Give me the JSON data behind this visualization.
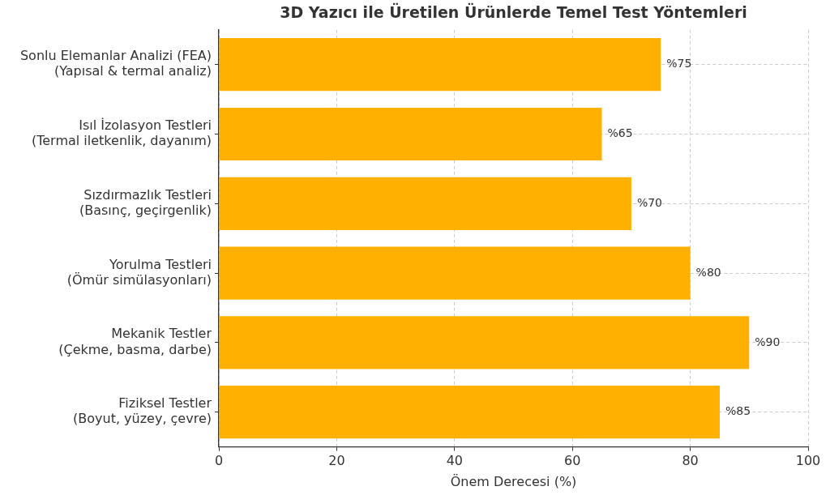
{
  "chart_data": {
    "type": "bar",
    "orientation": "horizontal",
    "title": "3D Yazıcı ile Üretilen Ürünlerde Temel Test Yöntemleri",
    "xlabel": "Önem Derecesi (%)",
    "categories": [
      "Sonlu Elemanlar Analizi (FEA)\n(Yapısal & termal analiz)",
      "Isıl İzolasyon Testleri\n(Termal iletkenlik, dayanım)",
      "Sızdırmazlık Testleri\n(Basınç, geçirgenlik)",
      "Yorulma Testleri\n(Ömür simülasyonları)",
      "Mekanik Testler\n(Çekme, basma, darbe)",
      "Fiziksel Testler\n(Boyut, yüzey, çevre)"
    ],
    "values": [
      75,
      65,
      70,
      80,
      90,
      85
    ],
    "color": "#ffb000",
    "value_labels": [
      "%75",
      "%65",
      "%70",
      "%80",
      "%90",
      "%85"
    ],
    "xlim": [
      0,
      100
    ],
    "xticks": [
      0,
      20,
      40,
      60,
      80,
      100
    ],
    "grid": true
  }
}
